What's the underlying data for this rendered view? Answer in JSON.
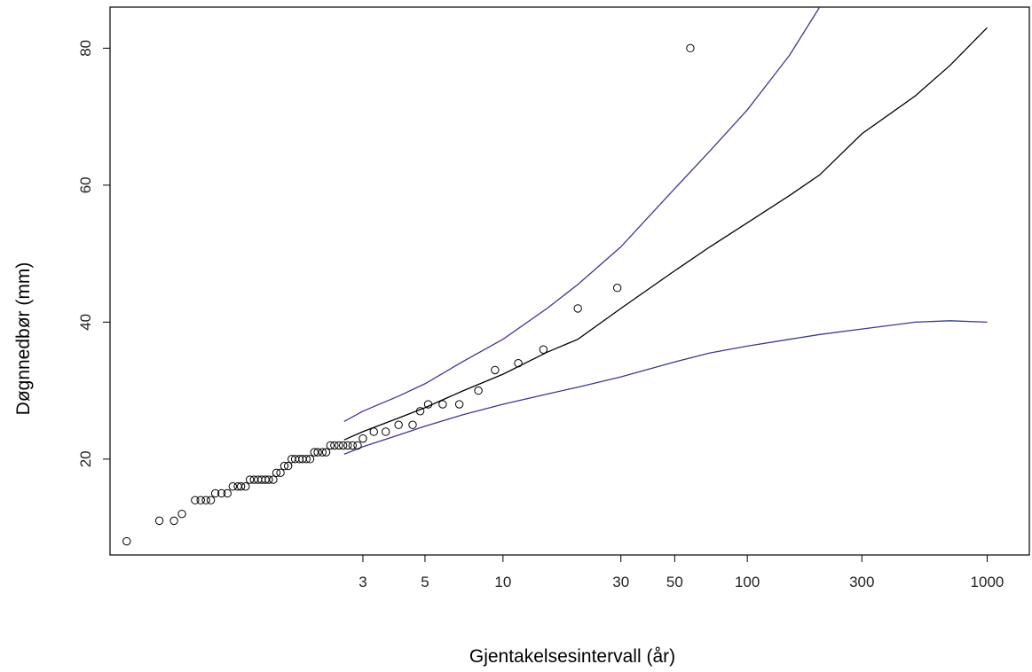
{
  "chart_data": {
    "type": "scatter",
    "title": "",
    "xlabel": "Gjentakelsesintervall (år)",
    "ylabel": "Døgnnedbør (mm)",
    "x_scale": "gumbel-reduced-variate",
    "x_ticks": [
      3,
      5,
      10,
      30,
      50,
      100,
      300,
      1000
    ],
    "x_tick_labels": [
      "3",
      "5",
      "10",
      "30",
      "50",
      "100",
      "300",
      "1000"
    ],
    "xlim": [
      1.01,
      1500
    ],
    "y_ticks": [
      20,
      40,
      60,
      80
    ],
    "y_tick_labels": [
      "20",
      "40",
      "60",
      "80"
    ],
    "ylim": [
      6,
      86
    ],
    "grid": false,
    "legend": "none",
    "colors": {
      "points": "#000000",
      "fit": "#000000",
      "ci": "#3a3a8c"
    },
    "points": {
      "x": [
        1.02,
        1.06,
        1.09,
        1.11,
        1.15,
        1.17,
        1.19,
        1.21,
        1.23,
        1.26,
        1.29,
        1.32,
        1.35,
        1.37,
        1.4,
        1.43,
        1.46,
        1.49,
        1.52,
        1.55,
        1.58,
        1.62,
        1.65,
        1.69,
        1.73,
        1.77,
        1.81,
        1.85,
        1.9,
        1.94,
        1.99,
        2.04,
        2.1,
        2.15,
        2.22,
        2.28,
        2.35,
        2.42,
        2.5,
        2.58,
        2.67,
        2.77,
        2.88,
        3.0,
        3.27,
        3.6,
        4.0,
        4.5,
        4.8,
        5.14,
        5.83,
        6.75,
        8.0,
        9.3,
        11.5,
        14.5,
        20.0,
        29.0,
        58.0
      ],
      "y": [
        8,
        11,
        11,
        12,
        14,
        14,
        14,
        14,
        15,
        15,
        15,
        16,
        16,
        16,
        16,
        17,
        17,
        17,
        17,
        17,
        17,
        17,
        18,
        18,
        19,
        19,
        20,
        20,
        20,
        20,
        20,
        20,
        21,
        21,
        21,
        21,
        22,
        22,
        22,
        22,
        22,
        22,
        22,
        23,
        24,
        24,
        25,
        25,
        27,
        28,
        28,
        28,
        30,
        33,
        34,
        36,
        42,
        45,
        80
      ]
    },
    "fit": {
      "x": [
        2.6,
        3,
        4,
        5,
        7,
        10,
        15,
        20,
        30,
        50,
        70,
        100,
        150,
        200,
        300,
        500,
        700,
        1000
      ],
      "y": [
        22.8,
        24.0,
        26.0,
        27.5,
        30.0,
        32.4,
        35.6,
        37.5,
        42.0,
        47.5,
        51.0,
        54.5,
        58.5,
        61.5,
        67.5,
        73.0,
        77.5,
        83.0
      ]
    },
    "ci_upper": {
      "x": [
        2.6,
        3,
        4,
        5,
        7,
        10,
        15,
        20,
        30,
        50,
        70,
        100,
        150,
        200
      ],
      "y": [
        25.5,
        27.0,
        29.2,
        31.0,
        34.3,
        37.5,
        42.0,
        45.5,
        51.0,
        59.5,
        65.0,
        71.0,
        79.0,
        86.0
      ]
    },
    "ci_lower": {
      "x": [
        2.6,
        3,
        4,
        5,
        7,
        10,
        15,
        20,
        30,
        50,
        70,
        100,
        150,
        200,
        300,
        500,
        700,
        1000
      ],
      "y": [
        20.7,
        21.8,
        23.5,
        24.8,
        26.5,
        28.0,
        29.5,
        30.5,
        32.0,
        34.2,
        35.5,
        36.5,
        37.5,
        38.2,
        39.0,
        40.0,
        40.2,
        40.0
      ]
    }
  }
}
